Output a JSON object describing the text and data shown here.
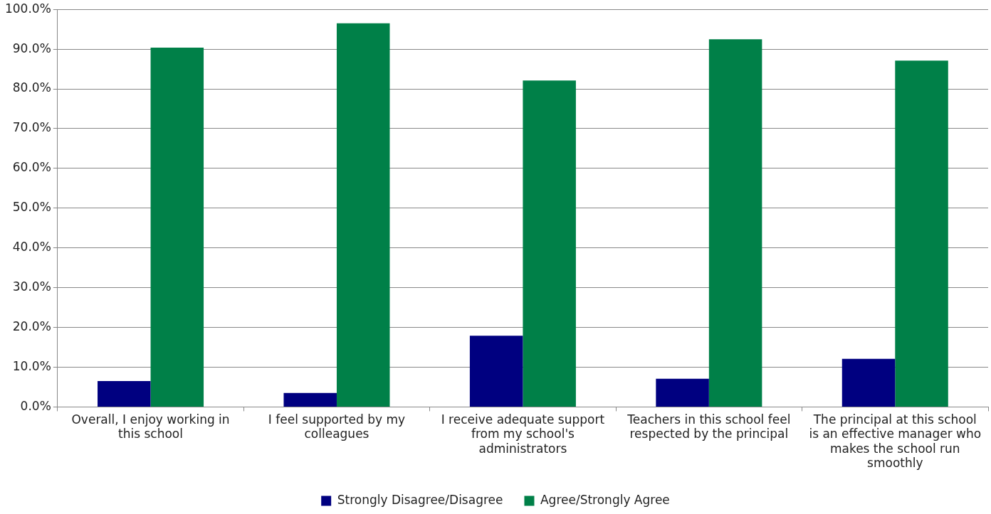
{
  "chart_data": {
    "type": "bar",
    "categories": [
      "Overall, I enjoy working in this school",
      "I feel supported by my colleagues",
      "I receive adequate support from my school's administrators",
      "Teachers in this school feel respected by the principal",
      "The principal at this school is an effective manager who makes the school run smoothly"
    ],
    "series": [
      {
        "name": "Strongly Disagree/Disagree",
        "color": "#000080",
        "values": [
          6.5,
          3.5,
          17.9,
          7.1,
          12.1
        ]
      },
      {
        "name": "Agree/Strongly Agree",
        "color": "#008048",
        "values": [
          90.4,
          96.5,
          82.1,
          92.5,
          87.1
        ]
      }
    ],
    "ylim": [
      0,
      100
    ],
    "yticks": [
      {
        "value": 0,
        "label": "0.0%"
      },
      {
        "value": 10,
        "label": "10.0%"
      },
      {
        "value": 20,
        "label": "20.0%"
      },
      {
        "value": 30,
        "label": "30.0%"
      },
      {
        "value": 40,
        "label": "40.0%"
      },
      {
        "value": 50,
        "label": "50.0%"
      },
      {
        "value": 60,
        "label": "60.0%"
      },
      {
        "value": 70,
        "label": "70.0%"
      },
      {
        "value": 80,
        "label": "80.0%"
      },
      {
        "value": 90,
        "label": "90.0%"
      },
      {
        "value": 100,
        "label": "100.0%"
      }
    ],
    "grid": "y",
    "legend": "bottom"
  }
}
